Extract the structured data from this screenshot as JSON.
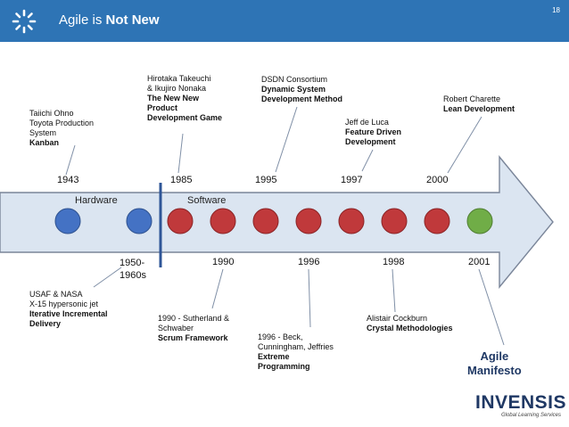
{
  "header": {
    "title_plain": "Agile is ",
    "title_bold": "Not New",
    "page_number": "18"
  },
  "timeline": {
    "top_years": [
      "1943",
      "1985",
      "1995",
      "1997",
      "2000"
    ],
    "bottom_years": [
      "1950-",
      "1960s",
      "1990",
      "1996",
      "1998",
      "2001"
    ],
    "era_labels": {
      "hardware": "Hardware",
      "software": "Software"
    }
  },
  "events": {
    "ohno": [
      "Taiichi Ohno",
      "Toyota Production",
      "System",
      "Kanban"
    ],
    "takeuchi": [
      "Hirotaka Takeuchi",
      "&  Ikujiro Nonaka",
      "The New New",
      "Product",
      "Development Game"
    ],
    "dsdn": [
      "DSDN Consortium",
      "Dynamic System",
      "Development Method"
    ],
    "deluca": [
      "Jeff de Luca",
      "Feature Driven",
      "Development"
    ],
    "charette": [
      "Robert Charette",
      "Lean Development"
    ],
    "usaf": [
      "USAF & NASA",
      "X-15 hypersonic jet",
      "Iterative Incremental",
      "Delivery"
    ],
    "scrum": [
      "1990 - Sutherland &",
      "Schwaber",
      "Scrum Framework"
    ],
    "xp": [
      "1996 - Beck,",
      "Cunningham, Jeffries",
      "Extreme",
      "Programming"
    ],
    "crystal": [
      "Alistair Cockburn",
      "Crystal Methodologies"
    ],
    "manifesto": [
      "Agile",
      "Manifesto"
    ]
  },
  "logo": {
    "name": "INVENSIS",
    "tagline": "Global Learning Services"
  },
  "colors": {
    "header": "#2e74b5",
    "hardware_dot": "#4472c4",
    "software_dot": "#c0393b",
    "agile_dot": "#70ad47",
    "arrow_fill": "#dbe5f1"
  }
}
